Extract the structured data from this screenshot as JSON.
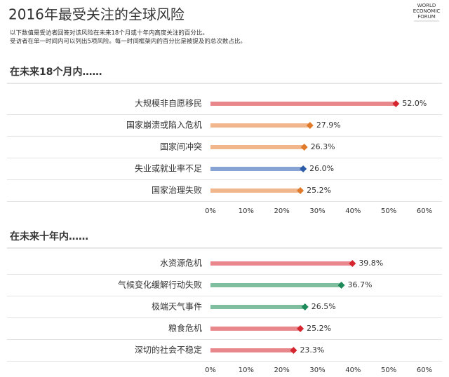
{
  "header": {
    "title": "2016年最受关注的全球风险",
    "subtitle": [
      "以下数值是受访者回答对该风险在未来18个月或十年内高度关注的百分比。",
      "受访者在单一时间内可以列出5项风险。每一时间框架内的百分比是被提及的总次数占比。"
    ],
    "logo": [
      "WORLD",
      "ECONOMIC",
      "FORUM"
    ]
  },
  "chart_data": [
    {
      "type": "bar",
      "orientation": "horizontal",
      "title": "在未来18个月内……",
      "categories": [
        "大规模非自愿移民",
        "国家崩溃或陷入危机",
        "国家间冲突",
        "失业或就业率不足",
        "国家治理失败"
      ],
      "values": [
        52.0,
        27.9,
        26.3,
        26.0,
        25.2
      ],
      "value_labels": [
        "52.0%",
        "27.9%",
        "26.3%",
        "26.0%",
        "25.2%"
      ],
      "colors": [
        "#e8888d",
        "#f1b68c",
        "#f1b68c",
        "#87a3d3",
        "#f1b68c"
      ],
      "marker_colors": [
        "#d5262f",
        "#e07b2b",
        "#e07b2b",
        "#2c5ca8",
        "#e07b2b"
      ],
      "xlim": [
        0,
        60
      ],
      "xticks": [
        {
          "value": 0,
          "label": "0%"
        },
        {
          "value": 10,
          "label": "10%"
        },
        {
          "value": 20,
          "label": "20%"
        },
        {
          "value": 30,
          "label": "30%"
        },
        {
          "value": 40,
          "label": "40%"
        },
        {
          "value": 50,
          "label": "50%"
        },
        {
          "value": 60,
          "label": "60%"
        }
      ]
    },
    {
      "type": "bar",
      "orientation": "horizontal",
      "title": "在未来十年内……",
      "categories": [
        "水资源危机",
        "气候变化缓解行动失败",
        "极端天气事件",
        "粮食危机",
        "深切的社会不稳定"
      ],
      "values": [
        39.8,
        36.7,
        26.5,
        25.2,
        23.3
      ],
      "value_labels": [
        "39.8%",
        "36.7%",
        "26.5%",
        "25.2%",
        "23.3%"
      ],
      "colors": [
        "#e8888d",
        "#7fbf9f",
        "#7fbf9f",
        "#e8888d",
        "#e8888d"
      ],
      "marker_colors": [
        "#d5262f",
        "#1d8a5a",
        "#1d8a5a",
        "#d5262f",
        "#d5262f"
      ],
      "xlim": [
        0,
        60
      ],
      "xticks": [
        {
          "value": 0,
          "label": "0%"
        },
        {
          "value": 10,
          "label": "10%"
        },
        {
          "value": 20,
          "label": "20%"
        },
        {
          "value": 30,
          "label": "30%"
        },
        {
          "value": 40,
          "label": "40%"
        },
        {
          "value": 50,
          "label": "50%"
        },
        {
          "value": 60,
          "label": "60%"
        }
      ]
    }
  ]
}
